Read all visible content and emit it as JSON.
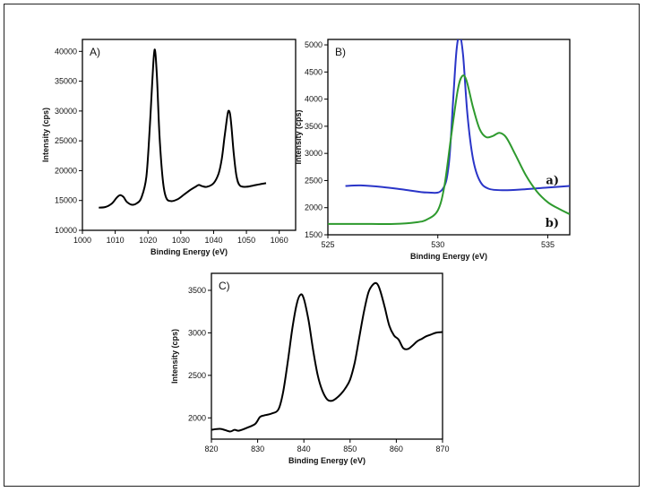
{
  "chart_data": [
    {
      "type": "line",
      "panel_label": "A)",
      "xlabel": "Binding Energy (eV)",
      "ylabel": "Intensity (cps)",
      "xlim": [
        1000,
        1065
      ],
      "ylim": [
        10000,
        42000
      ],
      "xticks": [
        1000,
        1010,
        1020,
        1030,
        1040,
        1050,
        1060
      ],
      "yticks": [
        10000,
        15000,
        20000,
        25000,
        30000,
        35000,
        40000
      ],
      "legend": "none",
      "grid": false,
      "series": [
        {
          "color": "#000000",
          "x": [
            1005,
            1007,
            1009,
            1010.5,
            1011.5,
            1012.5,
            1013.5,
            1015,
            1016.5,
            1018,
            1019.5,
            1020.5,
            1021.3,
            1022,
            1022.7,
            1023.5,
            1024.5,
            1025.5,
            1027,
            1029,
            1031,
            1033,
            1034.5,
            1035.5,
            1036.5,
            1038,
            1040,
            1041.5,
            1042.5,
            1043.3,
            1044,
            1044.5,
            1045,
            1045.5,
            1046.2,
            1047,
            1048,
            1050,
            1052,
            1054,
            1056
          ],
          "y": [
            13800,
            13900,
            14500,
            15500,
            15900,
            15600,
            14800,
            14300,
            14500,
            15500,
            19000,
            27000,
            35000,
            40300,
            36000,
            26000,
            18500,
            15500,
            14900,
            15200,
            16000,
            16800,
            17300,
            17600,
            17400,
            17300,
            17900,
            19500,
            22000,
            25500,
            28500,
            30000,
            29500,
            27000,
            22500,
            19000,
            17500,
            17300,
            17500,
            17700,
            17900
          ]
        }
      ]
    },
    {
      "type": "line",
      "panel_label": "B)",
      "xlabel": "Binding Energy (eV)",
      "ylabel": "Intensity (cps)",
      "xlim": [
        525,
        536
      ],
      "ylim": [
        1500,
        5100
      ],
      "xticks": [
        525,
        530,
        535
      ],
      "yticks": [
        1500,
        2000,
        2500,
        3000,
        3500,
        4000,
        4500,
        5000
      ],
      "legend": "inline-right",
      "grid": false,
      "series": [
        {
          "name": "a)",
          "color": "#2a35c8",
          "x": [
            525.8,
            526.5,
            527.5,
            528.5,
            529.5,
            530.2,
            530.5,
            530.7,
            530.85,
            531.0,
            531.15,
            531.35,
            531.6,
            531.9,
            532.3,
            533,
            534,
            535,
            536
          ],
          "y": [
            2400,
            2410,
            2380,
            2330,
            2280,
            2330,
            2800,
            4000,
            4900,
            5180,
            4800,
            3700,
            2900,
            2500,
            2350,
            2320,
            2340,
            2370,
            2400
          ]
        },
        {
          "name": "b)",
          "color": "#2e9a2e",
          "x": [
            525,
            526,
            527,
            528,
            529,
            529.5,
            530,
            530.3,
            530.6,
            530.9,
            531.1,
            531.3,
            531.6,
            531.9,
            532.2,
            532.5,
            532.8,
            533.1,
            533.5,
            534,
            534.5,
            535,
            535.5,
            536
          ],
          "y": [
            1700,
            1700,
            1700,
            1700,
            1730,
            1780,
            1950,
            2400,
            3300,
            4150,
            4420,
            4350,
            3850,
            3450,
            3300,
            3320,
            3380,
            3300,
            3000,
            2600,
            2300,
            2100,
            1980,
            1880
          ]
        }
      ]
    },
    {
      "type": "line",
      "panel_label": "C)",
      "xlabel": "Binding Energy (eV)",
      "ylabel": "Intensity (cps)",
      "xlim": [
        820,
        870
      ],
      "ylim": [
        1750,
        3700
      ],
      "xticks": [
        820,
        830,
        840,
        850,
        860,
        870
      ],
      "yticks": [
        2000,
        2500,
        3000,
        3500
      ],
      "legend": "none",
      "grid": false,
      "series": [
        {
          "color": "#000000",
          "x": [
            820,
            822,
            824,
            825,
            826,
            828,
            829.5,
            830.5,
            831.5,
            833,
            834.5,
            835.5,
            836.5,
            837.5,
            838.5,
            839.3,
            840,
            841,
            842,
            843,
            844,
            845,
            846,
            847,
            848,
            849,
            850,
            851,
            852,
            853,
            854,
            855,
            855.8,
            856.5,
            857.5,
            858.5,
            859.5,
            860.5,
            861.5,
            862.5,
            863.5,
            864.5,
            865.5,
            866.5,
            867.5,
            868.5,
            870
          ],
          "y": [
            1860,
            1870,
            1840,
            1860,
            1850,
            1890,
            1930,
            2010,
            2030,
            2050,
            2100,
            2300,
            2650,
            3050,
            3350,
            3450,
            3400,
            3150,
            2800,
            2500,
            2320,
            2220,
            2200,
            2230,
            2280,
            2350,
            2450,
            2650,
            2950,
            3250,
            3480,
            3570,
            3580,
            3500,
            3300,
            3080,
            2970,
            2920,
            2820,
            2810,
            2850,
            2900,
            2930,
            2960,
            2980,
            3000,
            3010
          ]
        }
      ]
    }
  ]
}
